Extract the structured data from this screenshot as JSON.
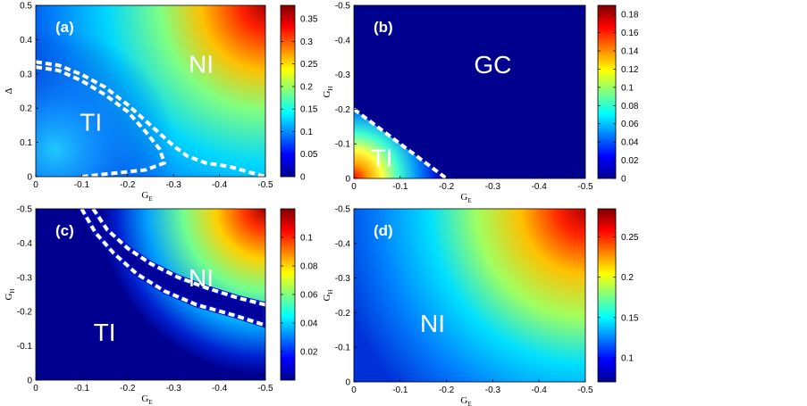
{
  "chart_data": [
    {
      "type": "heatmap",
      "panel_label": "(a)",
      "xlabel": "G",
      "xlabel_sub": "E",
      "ylabel": "Δ",
      "ylabel_sub": "",
      "xlim": [
        0,
        -0.5
      ],
      "ylim": [
        0,
        0.5
      ],
      "xticks": [
        "0",
        "-0.1",
        "-0.2",
        "-0.3",
        "-0.4",
        "-0.5"
      ],
      "yticks": [
        "0",
        "0.1",
        "0.2",
        "0.3",
        "0.4",
        "0.5"
      ],
      "colorbar": {
        "range": [
          0,
          0.38
        ],
        "ticks": [
          "0",
          "0.05",
          "0.1",
          "0.15",
          "0.2",
          "0.25",
          "0.3",
          "0.35"
        ]
      },
      "regions": [
        {
          "label": "NI",
          "x": -0.36,
          "y": 0.33
        },
        {
          "label": "TI",
          "x": -0.12,
          "y": 0.16
        }
      ],
      "boundaries": [
        [
          [
            0,
            0.32
          ],
          [
            -0.05,
            0.31
          ],
          [
            -0.1,
            0.28
          ],
          [
            -0.15,
            0.24
          ],
          [
            -0.2,
            0.19
          ],
          [
            -0.24,
            0.13
          ],
          [
            -0.27,
            0.08
          ],
          [
            -0.28,
            0.04
          ],
          [
            -0.24,
            0.02
          ],
          [
            -0.17,
            0.01
          ],
          [
            -0.1,
            0.0
          ]
        ],
        [
          [
            0,
            0.335
          ],
          [
            -0.05,
            0.325
          ],
          [
            -0.1,
            0.298
          ],
          [
            -0.15,
            0.262
          ],
          [
            -0.2,
            0.21
          ],
          [
            -0.25,
            0.15
          ],
          [
            -0.3,
            0.09
          ],
          [
            -0.33,
            0.06
          ],
          [
            -0.37,
            0.04
          ],
          [
            -0.42,
            0.03
          ],
          [
            -0.46,
            0.015
          ],
          [
            -0.5,
            0.0
          ]
        ]
      ]
    },
    {
      "type": "heatmap",
      "panel_label": "(b)",
      "xlabel": "G",
      "xlabel_sub": "E",
      "ylabel": "G",
      "ylabel_sub": "H",
      "xlim": [
        0,
        -0.5
      ],
      "ylim": [
        0,
        -0.5
      ],
      "xticks": [
        "0",
        "-0.1",
        "-0.2",
        "-0.3",
        "-0.4",
        "-0.5"
      ],
      "yticks": [
        "0",
        "-0.1",
        "-0.2",
        "-0.3",
        "-0.4",
        "-0.5"
      ],
      "colorbar": {
        "range": [
          0,
          0.19
        ],
        "ticks": [
          "0",
          "0.02",
          "0.04",
          "0.06",
          "0.08",
          "0.1",
          "0.12",
          "0.14",
          "0.16",
          "0.18"
        ]
      },
      "regions": [
        {
          "label": "GC",
          "x": -0.3,
          "y": -0.33
        },
        {
          "label": "TI",
          "x": -0.06,
          "y": -0.06
        }
      ],
      "boundaries": [
        [
          [
            0,
            -0.2
          ],
          [
            -0.04,
            -0.16
          ],
          [
            -0.08,
            -0.12
          ],
          [
            -0.12,
            -0.08
          ],
          [
            -0.16,
            -0.04
          ],
          [
            -0.2,
            0.0
          ]
        ]
      ]
    },
    {
      "type": "heatmap",
      "panel_label": "(c)",
      "xlabel": "G",
      "xlabel_sub": "E",
      "ylabel": "G",
      "ylabel_sub": "H",
      "xlim": [
        0,
        -0.5
      ],
      "ylim": [
        0,
        -0.5
      ],
      "xticks": [
        "0",
        "-0.1",
        "-0.2",
        "-0.3",
        "-0.4",
        "-0.5"
      ],
      "yticks": [
        "0",
        "-0.1",
        "-0.2",
        "-0.3",
        "-0.4",
        "-0.5"
      ],
      "colorbar": {
        "range": [
          0,
          0.12
        ],
        "ticks": [
          "0.02",
          "0.04",
          "0.06",
          "0.08",
          "0.1"
        ]
      },
      "regions": [
        {
          "label": "NI",
          "x": -0.36,
          "y": -0.3
        },
        {
          "label": "TI",
          "x": -0.15,
          "y": -0.14
        }
      ],
      "boundaries": [
        [
          [
            -0.1,
            -0.5
          ],
          [
            -0.13,
            -0.43
          ],
          [
            -0.17,
            -0.37
          ],
          [
            -0.22,
            -0.31
          ],
          [
            -0.28,
            -0.26
          ],
          [
            -0.35,
            -0.22
          ],
          [
            -0.43,
            -0.19
          ],
          [
            -0.5,
            -0.16
          ]
        ],
        [
          [
            -0.125,
            -0.5
          ],
          [
            -0.155,
            -0.44
          ],
          [
            -0.2,
            -0.385
          ],
          [
            -0.25,
            -0.34
          ],
          [
            -0.31,
            -0.3
          ],
          [
            -0.37,
            -0.27
          ],
          [
            -0.44,
            -0.24
          ],
          [
            -0.5,
            -0.22
          ]
        ]
      ]
    },
    {
      "type": "heatmap",
      "panel_label": "(d)",
      "xlabel": "G",
      "xlabel_sub": "E",
      "ylabel": "G",
      "ylabel_sub": "H",
      "xlim": [
        0,
        -0.5
      ],
      "ylim": [
        0,
        -0.5
      ],
      "xticks": [
        "0",
        "-0.1",
        "-0.2",
        "-0.3",
        "-0.4",
        "-0.5"
      ],
      "yticks": [
        "0",
        "-0.1",
        "-0.2",
        "-0.3",
        "-0.4",
        "-0.5"
      ],
      "colorbar": {
        "range": [
          0.07,
          0.285
        ],
        "ticks": [
          "0.1",
          "0.15",
          "0.2",
          "0.25"
        ]
      },
      "regions": [
        {
          "label": "NI",
          "x": -0.17,
          "y": -0.17
        }
      ],
      "boundaries": []
    }
  ]
}
